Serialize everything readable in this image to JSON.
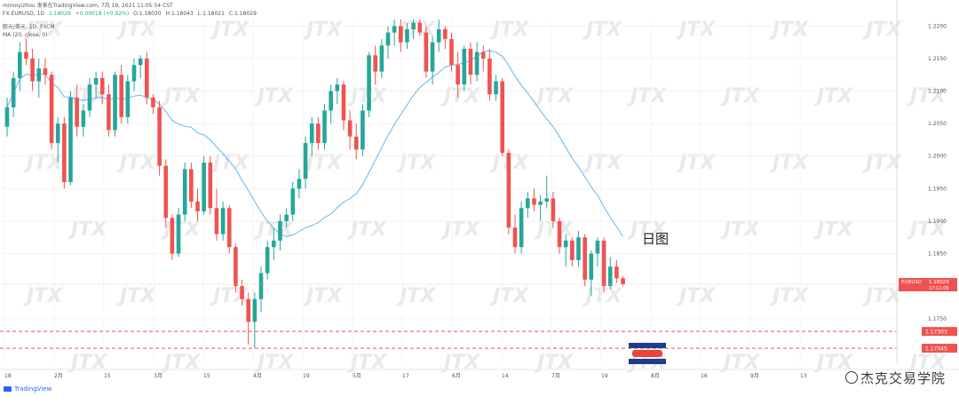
{
  "header": {
    "line1": "mimoyizhou 发表在TradingView.com, 7月 19, 2021 11:05:54 CST",
    "symbol": "FX:EURUSD, 1D",
    "ohlc": [
      "1.18029",
      "+0.00018 (+0.02%)",
      "O:1.18030",
      "H:1.18043",
      "L:1.18021",
      "C:1.18029"
    ],
    "instrument": "欧元/美元, 1D, FXCM",
    "indicator": "MA (20, close, 0)"
  },
  "annotation": "日图",
  "watermark_text": "JTX",
  "footer": {
    "brand": "TradingView",
    "credit": "杰克交易学院"
  },
  "colors": {
    "up": "#26a69a",
    "down": "#ef5350",
    "ma": "#64b5f6",
    "support": "#ef5350",
    "axis_text": "#555555"
  },
  "chart_data": {
    "type": "candlestick",
    "price_labels": [
      "1.2200",
      "1.2150",
      "1.2100",
      "1.2050",
      "1.2000",
      "1.1950",
      "1.1900",
      "1.1850",
      "1.1750"
    ],
    "price_ticks": [
      1.22,
      1.215,
      1.21,
      1.205,
      1.2,
      1.195,
      1.19,
      1.185,
      1.175
    ],
    "ylim": [
      1.168,
      1.221
    ],
    "x_labels": [
      "18",
      "2月",
      "15",
      "3月",
      "15",
      "4月",
      "19",
      "5月",
      "17",
      "6月",
      "14",
      "7月",
      "19",
      "8月",
      "16",
      "9月",
      "13"
    ],
    "current": {
      "label": "EURUSD",
      "price": "1.18029",
      "countdown": "17:11:09",
      "value": 1.18029
    },
    "support_levels": [
      {
        "label": "1.17303",
        "value": 1.17303
      },
      {
        "label": "1.17045",
        "value": 1.17045
      }
    ],
    "candles": [
      {
        "o": 1.2045,
        "h": 1.209,
        "l": 1.203,
        "c": 1.2075
      },
      {
        "o": 1.2075,
        "h": 1.213,
        "l": 1.206,
        "c": 1.212
      },
      {
        "o": 1.212,
        "h": 1.2175,
        "l": 1.21,
        "c": 1.216
      },
      {
        "o": 1.216,
        "h": 1.218,
        "l": 1.214,
        "c": 1.215
      },
      {
        "o": 1.215,
        "h": 1.2165,
        "l": 1.21,
        "c": 1.2115
      },
      {
        "o": 1.2115,
        "h": 1.215,
        "l": 1.209,
        "c": 1.2135
      },
      {
        "o": 1.2135,
        "h": 1.215,
        "l": 1.211,
        "c": 1.2125
      },
      {
        "o": 1.2125,
        "h": 1.213,
        "l": 1.201,
        "c": 1.202
      },
      {
        "o": 1.202,
        "h": 1.206,
        "l": 1.199,
        "c": 1.205
      },
      {
        "o": 1.205,
        "h": 1.206,
        "l": 1.195,
        "c": 1.196
      },
      {
        "o": 1.196,
        "h": 1.21,
        "l": 1.1955,
        "c": 1.209
      },
      {
        "o": 1.209,
        "h": 1.211,
        "l": 1.203,
        "c": 1.2045
      },
      {
        "o": 1.2045,
        "h": 1.208,
        "l": 1.203,
        "c": 1.207
      },
      {
        "o": 1.207,
        "h": 1.212,
        "l": 1.206,
        "c": 1.211
      },
      {
        "o": 1.211,
        "h": 1.213,
        "l": 1.209,
        "c": 1.212
      },
      {
        "o": 1.212,
        "h": 1.213,
        "l": 1.208,
        "c": 1.2095
      },
      {
        "o": 1.2095,
        "h": 1.211,
        "l": 1.203,
        "c": 1.204
      },
      {
        "o": 1.204,
        "h": 1.213,
        "l": 1.203,
        "c": 1.2125
      },
      {
        "o": 1.2125,
        "h": 1.214,
        "l": 1.205,
        "c": 1.206
      },
      {
        "o": 1.206,
        "h": 1.2125,
        "l": 1.205,
        "c": 1.2115
      },
      {
        "o": 1.2115,
        "h": 1.215,
        "l": 1.21,
        "c": 1.214
      },
      {
        "o": 1.214,
        "h": 1.2155,
        "l": 1.212,
        "c": 1.215
      },
      {
        "o": 1.215,
        "h": 1.216,
        "l": 1.208,
        "c": 1.209
      },
      {
        "o": 1.209,
        "h": 1.2095,
        "l": 1.2065,
        "c": 1.2075
      },
      {
        "o": 1.2075,
        "h": 1.2085,
        "l": 1.197,
        "c": 1.1985
      },
      {
        "o": 1.1985,
        "h": 1.1995,
        "l": 1.189,
        "c": 1.1905
      },
      {
        "o": 1.1905,
        "h": 1.191,
        "l": 1.184,
        "c": 1.185
      },
      {
        "o": 1.185,
        "h": 1.192,
        "l": 1.1845,
        "c": 1.191
      },
      {
        "o": 1.191,
        "h": 1.199,
        "l": 1.19,
        "c": 1.198
      },
      {
        "o": 1.198,
        "h": 1.199,
        "l": 1.192,
        "c": 1.193
      },
      {
        "o": 1.193,
        "h": 1.195,
        "l": 1.19,
        "c": 1.1915
      },
      {
        "o": 1.1915,
        "h": 1.2,
        "l": 1.191,
        "c": 1.199
      },
      {
        "o": 1.199,
        "h": 1.2,
        "l": 1.191,
        "c": 1.192
      },
      {
        "o": 1.192,
        "h": 1.195,
        "l": 1.187,
        "c": 1.188
      },
      {
        "o": 1.188,
        "h": 1.193,
        "l": 1.187,
        "c": 1.192
      },
      {
        "o": 1.192,
        "h": 1.1925,
        "l": 1.185,
        "c": 1.186
      },
      {
        "o": 1.186,
        "h": 1.1865,
        "l": 1.179,
        "c": 1.18
      },
      {
        "o": 1.18,
        "h": 1.181,
        "l": 1.177,
        "c": 1.178
      },
      {
        "o": 1.178,
        "h": 1.179,
        "l": 1.171,
        "c": 1.1745
      },
      {
        "o": 1.1745,
        "h": 1.179,
        "l": 1.1705,
        "c": 1.178
      },
      {
        "o": 1.178,
        "h": 1.183,
        "l": 1.176,
        "c": 1.182
      },
      {
        "o": 1.182,
        "h": 1.187,
        "l": 1.181,
        "c": 1.186
      },
      {
        "o": 1.186,
        "h": 1.189,
        "l": 1.184,
        "c": 1.187
      },
      {
        "o": 1.187,
        "h": 1.191,
        "l": 1.1855,
        "c": 1.19
      },
      {
        "o": 1.19,
        "h": 1.192,
        "l": 1.189,
        "c": 1.191
      },
      {
        "o": 1.191,
        "h": 1.196,
        "l": 1.19,
        "c": 1.195
      },
      {
        "o": 1.195,
        "h": 1.198,
        "l": 1.1935,
        "c": 1.1965
      },
      {
        "o": 1.1965,
        "h": 1.203,
        "l": 1.195,
        "c": 1.202
      },
      {
        "o": 1.202,
        "h": 1.206,
        "l": 1.2,
        "c": 1.205
      },
      {
        "o": 1.205,
        "h": 1.206,
        "l": 1.201,
        "c": 1.202
      },
      {
        "o": 1.202,
        "h": 1.208,
        "l": 1.201,
        "c": 1.207
      },
      {
        "o": 1.207,
        "h": 1.211,
        "l": 1.205,
        "c": 1.21
      },
      {
        "o": 1.21,
        "h": 1.212,
        "l": 1.208,
        "c": 1.211
      },
      {
        "o": 1.211,
        "h": 1.2115,
        "l": 1.204,
        "c": 1.2055
      },
      {
        "o": 1.2055,
        "h": 1.207,
        "l": 1.201,
        "c": 1.203
      },
      {
        "o": 1.203,
        "h": 1.205,
        "l": 1.1995,
        "c": 1.201
      },
      {
        "o": 1.201,
        "h": 1.208,
        "l": 1.2,
        "c": 1.207
      },
      {
        "o": 1.207,
        "h": 1.216,
        "l": 1.206,
        "c": 1.2155
      },
      {
        "o": 1.2155,
        "h": 1.217,
        "l": 1.211,
        "c": 1.213
      },
      {
        "o": 1.213,
        "h": 1.218,
        "l": 1.212,
        "c": 1.217
      },
      {
        "o": 1.217,
        "h": 1.22,
        "l": 1.215,
        "c": 1.219
      },
      {
        "o": 1.219,
        "h": 1.221,
        "l": 1.217,
        "c": 1.22
      },
      {
        "o": 1.22,
        "h": 1.221,
        "l": 1.216,
        "c": 1.2175
      },
      {
        "o": 1.2175,
        "h": 1.2205,
        "l": 1.2165,
        "c": 1.2195
      },
      {
        "o": 1.2195,
        "h": 1.221,
        "l": 1.218,
        "c": 1.2205
      },
      {
        "o": 1.2205,
        "h": 1.221,
        "l": 1.2185,
        "c": 1.219
      },
      {
        "o": 1.219,
        "h": 1.22,
        "l": 1.212,
        "c": 1.213
      },
      {
        "o": 1.213,
        "h": 1.2185,
        "l": 1.211,
        "c": 1.2175
      },
      {
        "o": 1.2175,
        "h": 1.221,
        "l": 1.216,
        "c": 1.2195
      },
      {
        "o": 1.2195,
        "h": 1.22,
        "l": 1.2165,
        "c": 1.218
      },
      {
        "o": 1.218,
        "h": 1.219,
        "l": 1.213,
        "c": 1.214
      },
      {
        "o": 1.214,
        "h": 1.216,
        "l": 1.209,
        "c": 1.211
      },
      {
        "o": 1.211,
        "h": 1.217,
        "l": 1.21,
        "c": 1.2165
      },
      {
        "o": 1.2165,
        "h": 1.2175,
        "l": 1.211,
        "c": 1.2125
      },
      {
        "o": 1.2125,
        "h": 1.2175,
        "l": 1.2115,
        "c": 1.216
      },
      {
        "o": 1.216,
        "h": 1.217,
        "l": 1.213,
        "c": 1.215
      },
      {
        "o": 1.215,
        "h": 1.2165,
        "l": 1.2085,
        "c": 1.2095
      },
      {
        "o": 1.2095,
        "h": 1.2125,
        "l": 1.2085,
        "c": 1.2115
      },
      {
        "o": 1.2115,
        "h": 1.212,
        "l": 1.2,
        "c": 1.2005
      },
      {
        "o": 1.2005,
        "h": 1.201,
        "l": 1.188,
        "c": 1.189
      },
      {
        "o": 1.189,
        "h": 1.191,
        "l": 1.185,
        "c": 1.186
      },
      {
        "o": 1.186,
        "h": 1.193,
        "l": 1.185,
        "c": 1.192
      },
      {
        "o": 1.192,
        "h": 1.1945,
        "l": 1.1905,
        "c": 1.1935
      },
      {
        "o": 1.1935,
        "h": 1.195,
        "l": 1.1915,
        "c": 1.1925
      },
      {
        "o": 1.1925,
        "h": 1.194,
        "l": 1.19,
        "c": 1.193
      },
      {
        "o": 1.193,
        "h": 1.197,
        "l": 1.192,
        "c": 1.1935
      },
      {
        "o": 1.1935,
        "h": 1.1945,
        "l": 1.189,
        "c": 1.19
      },
      {
        "o": 1.19,
        "h": 1.1905,
        "l": 1.185,
        "c": 1.186
      },
      {
        "o": 1.186,
        "h": 1.188,
        "l": 1.183,
        "c": 1.187
      },
      {
        "o": 1.187,
        "h": 1.1875,
        "l": 1.183,
        "c": 1.184
      },
      {
        "o": 1.184,
        "h": 1.1885,
        "l": 1.183,
        "c": 1.1875
      },
      {
        "o": 1.1875,
        "h": 1.188,
        "l": 1.18,
        "c": 1.181
      },
      {
        "o": 1.181,
        "h": 1.1855,
        "l": 1.1785,
        "c": 1.185
      },
      {
        "o": 1.185,
        "h": 1.1875,
        "l": 1.183,
        "c": 1.187
      },
      {
        "o": 1.187,
        "h": 1.1875,
        "l": 1.179,
        "c": 1.18
      },
      {
        "o": 1.18,
        "h": 1.1845,
        "l": 1.1795,
        "c": 1.183
      },
      {
        "o": 1.183,
        "h": 1.184,
        "l": 1.1805,
        "c": 1.1812
      },
      {
        "o": 1.1812,
        "h": 1.1815,
        "l": 1.18,
        "c": 1.18029
      }
    ],
    "ma": {
      "name": "MA (20, close, 0)",
      "period": 20
    }
  }
}
